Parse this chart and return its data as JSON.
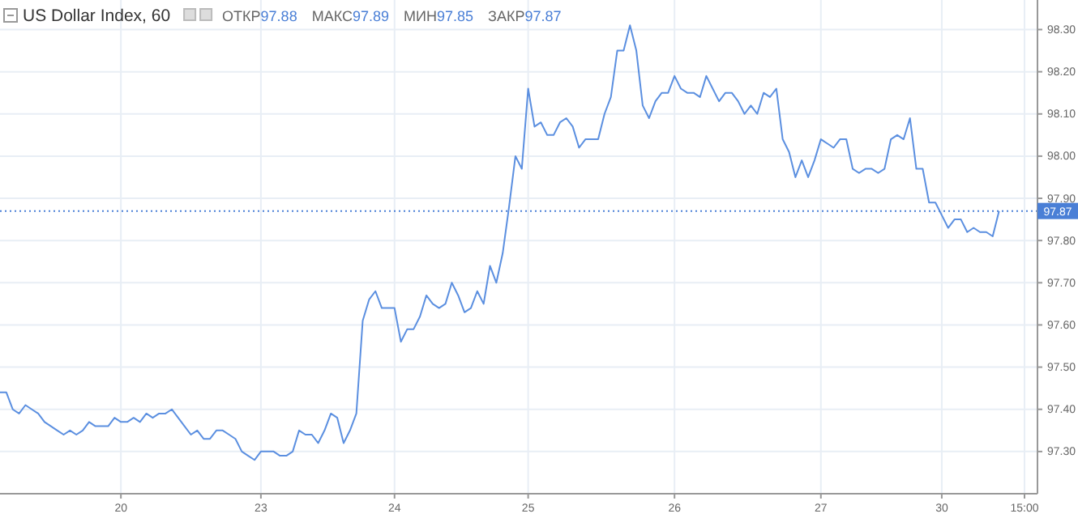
{
  "chart_data": {
    "type": "line",
    "title": "US Dollar Index, 60",
    "annotations": [
      "ОТКР97.88",
      "МАКС97.89",
      "МИН97.85",
      "ЗАКР97.87"
    ],
    "categories": [
      null,
      null,
      null,
      null,
      null,
      null,
      null,
      null,
      null,
      null,
      null,
      null,
      null,
      null,
      null,
      null,
      null,
      null,
      null,
      "20",
      null,
      null,
      null,
      null,
      null,
      null,
      null,
      null,
      null,
      null,
      null,
      null,
      null,
      null,
      null,
      null,
      null,
      null,
      null,
      null,
      null,
      "23",
      null,
      null,
      null,
      null,
      null,
      null,
      null,
      null,
      null,
      null,
      null,
      null,
      null,
      null,
      null,
      null,
      null,
      null,
      null,
      null,
      "24",
      null,
      null,
      null,
      null,
      null,
      null,
      null,
      null,
      null,
      null,
      null,
      null,
      null,
      null,
      null,
      null,
      null,
      null,
      null,
      null,
      "25",
      null,
      null,
      null,
      null,
      null,
      null,
      null,
      null,
      null,
      null,
      null,
      null,
      null,
      null,
      null,
      null,
      null,
      null,
      null,
      null,
      null,
      null,
      "26",
      null,
      null,
      null,
      null,
      null,
      null,
      null,
      null,
      null,
      null,
      null,
      null,
      null,
      null,
      null,
      null,
      null,
      null,
      null,
      null,
      null,
      null,
      "27",
      null,
      null,
      null,
      null,
      null,
      null,
      null,
      null,
      null,
      null,
      null,
      null,
      null,
      null,
      null,
      null,
      null,
      null,
      "30",
      null,
      null,
      null,
      null,
      null,
      null,
      null,
      null,
      null,
      null,
      null,
      null,
      "15:00"
    ],
    "series": [
      {
        "color": "#5b8fe0",
        "values": [
          97.44,
          97.44,
          97.4,
          97.39,
          97.41,
          97.4,
          97.39,
          97.37,
          97.36,
          97.35,
          97.34,
          97.35,
          97.34,
          97.35,
          97.37,
          97.36,
          97.36,
          97.36,
          97.38,
          97.37,
          97.37,
          97.38,
          97.37,
          97.39,
          97.38,
          97.39,
          97.39,
          97.4,
          97.38,
          97.36,
          97.34,
          97.35,
          97.33,
          97.33,
          97.35,
          97.35,
          97.34,
          97.33,
          97.3,
          97.29,
          97.28,
          97.3,
          97.3,
          97.3,
          97.29,
          97.29,
          97.3,
          97.35,
          97.34,
          97.34,
          97.32,
          97.35,
          97.39,
          97.38,
          97.32,
          97.35,
          97.39,
          97.61,
          97.66,
          97.68,
          97.64,
          97.64,
          97.64,
          97.56,
          97.59,
          97.59,
          97.62,
          97.67,
          97.65,
          97.64,
          97.65,
          97.7,
          97.67,
          97.63,
          97.64,
          97.68,
          97.65,
          97.74,
          97.7,
          97.77,
          97.88,
          98.0,
          97.97,
          98.16,
          98.07,
          98.08,
          98.05,
          98.05,
          98.08,
          98.09,
          98.07,
          98.02,
          98.04,
          98.04,
          98.04,
          98.1,
          98.14,
          98.25,
          98.25,
          98.31,
          98.25,
          98.12,
          98.09,
          98.13,
          98.15,
          98.15,
          98.19,
          98.16,
          98.15,
          98.15,
          98.14,
          98.19,
          98.16,
          98.13,
          98.15,
          98.15,
          98.13,
          98.1,
          98.12,
          98.1,
          98.15,
          98.14,
          98.16,
          98.04,
          98.01,
          97.95,
          97.99,
          97.95,
          97.99,
          98.04,
          98.03,
          98.02,
          98.04,
          98.04,
          97.97,
          97.96,
          97.97,
          97.97,
          97.96,
          97.97,
          98.04,
          98.05,
          98.04,
          98.09,
          97.97,
          97.97,
          97.89,
          97.89,
          97.86,
          97.83,
          97.85,
          97.85,
          97.82,
          97.83,
          97.82,
          97.82,
          97.81,
          97.87,
          null,
          null,
          null,
          null
        ]
      }
    ],
    "ylim": [
      97.2,
      98.37
    ],
    "yticks": [
      {
        "value": 97.3,
        "label": "97.30"
      },
      {
        "value": 97.4,
        "label": "97.40"
      },
      {
        "value": 97.5,
        "label": "97.50"
      },
      {
        "value": 97.6,
        "label": "97.60"
      },
      {
        "value": 97.7,
        "label": "97.70"
      },
      {
        "value": 97.8,
        "label": "97.80"
      },
      {
        "value": 97.9,
        "label": "97.90"
      },
      {
        "value": 98.0,
        "label": "98.00"
      },
      {
        "value": 98.1,
        "label": "98.10"
      },
      {
        "value": 98.2,
        "label": "98.20"
      },
      {
        "value": 98.3,
        "label": "98.30"
      }
    ],
    "grid": true,
    "ref_lines": [
      {
        "axis": "y",
        "value": 97.87,
        "label": "97.87",
        "color": "#4a7fd6",
        "line_style": "dotted"
      }
    ],
    "line_style": "solid"
  }
}
